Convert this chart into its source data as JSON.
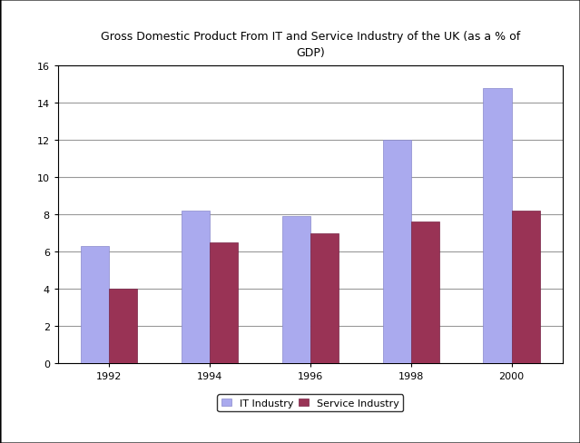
{
  "title": "Gross Domestic Product From IT and Service Industry of the UK (as a % of\nGDP)",
  "years": [
    "1992",
    "1994",
    "1996",
    "1998",
    "2000"
  ],
  "it_industry": [
    6.3,
    8.2,
    7.9,
    12.0,
    14.8
  ],
  "service_industry": [
    4.0,
    6.5,
    7.0,
    7.6,
    8.2
  ],
  "it_color": "#aaaaee",
  "service_color": "#993355",
  "it_edge": "#8888cc",
  "service_edge": "#772244",
  "ylim": [
    0,
    16
  ],
  "yticks": [
    0,
    2,
    4,
    6,
    8,
    10,
    12,
    14,
    16
  ],
  "legend_labels": [
    "IT Industry",
    "Service Industry"
  ],
  "bar_width": 0.28,
  "background_color": "#ffffff",
  "grid_color": "#999999",
  "title_fontsize": 9,
  "tick_fontsize": 8,
  "legend_fontsize": 8
}
